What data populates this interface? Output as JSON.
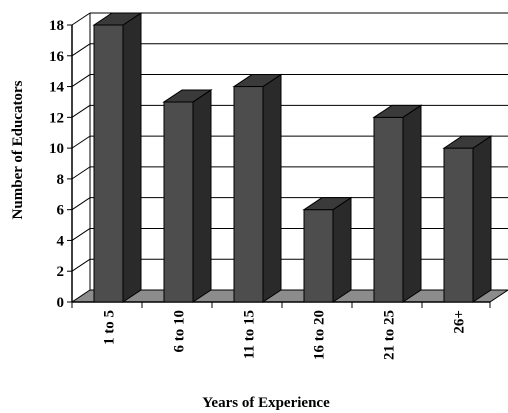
{
  "chart_data": {
    "type": "bar",
    "categories": [
      "1 to 5",
      "6 to 10",
      "11 to 15",
      "16 to 20",
      "21 to 25",
      "26+"
    ],
    "values": [
      18,
      13,
      14,
      6,
      12,
      10
    ],
    "xlabel": "Years of Experience",
    "ylabel": "Number of Educators",
    "ylim": [
      0,
      18
    ],
    "yticks": [
      0,
      2,
      4,
      6,
      8,
      10,
      12,
      14,
      16,
      18
    ],
    "grid": true,
    "legend": "none",
    "colors": {
      "bar_front": "#4d4d4d",
      "bar_side": "#2a2a2a",
      "bar_top": "#3a3a3a",
      "floor": "#8c8c8c",
      "grid": "#000000"
    }
  }
}
